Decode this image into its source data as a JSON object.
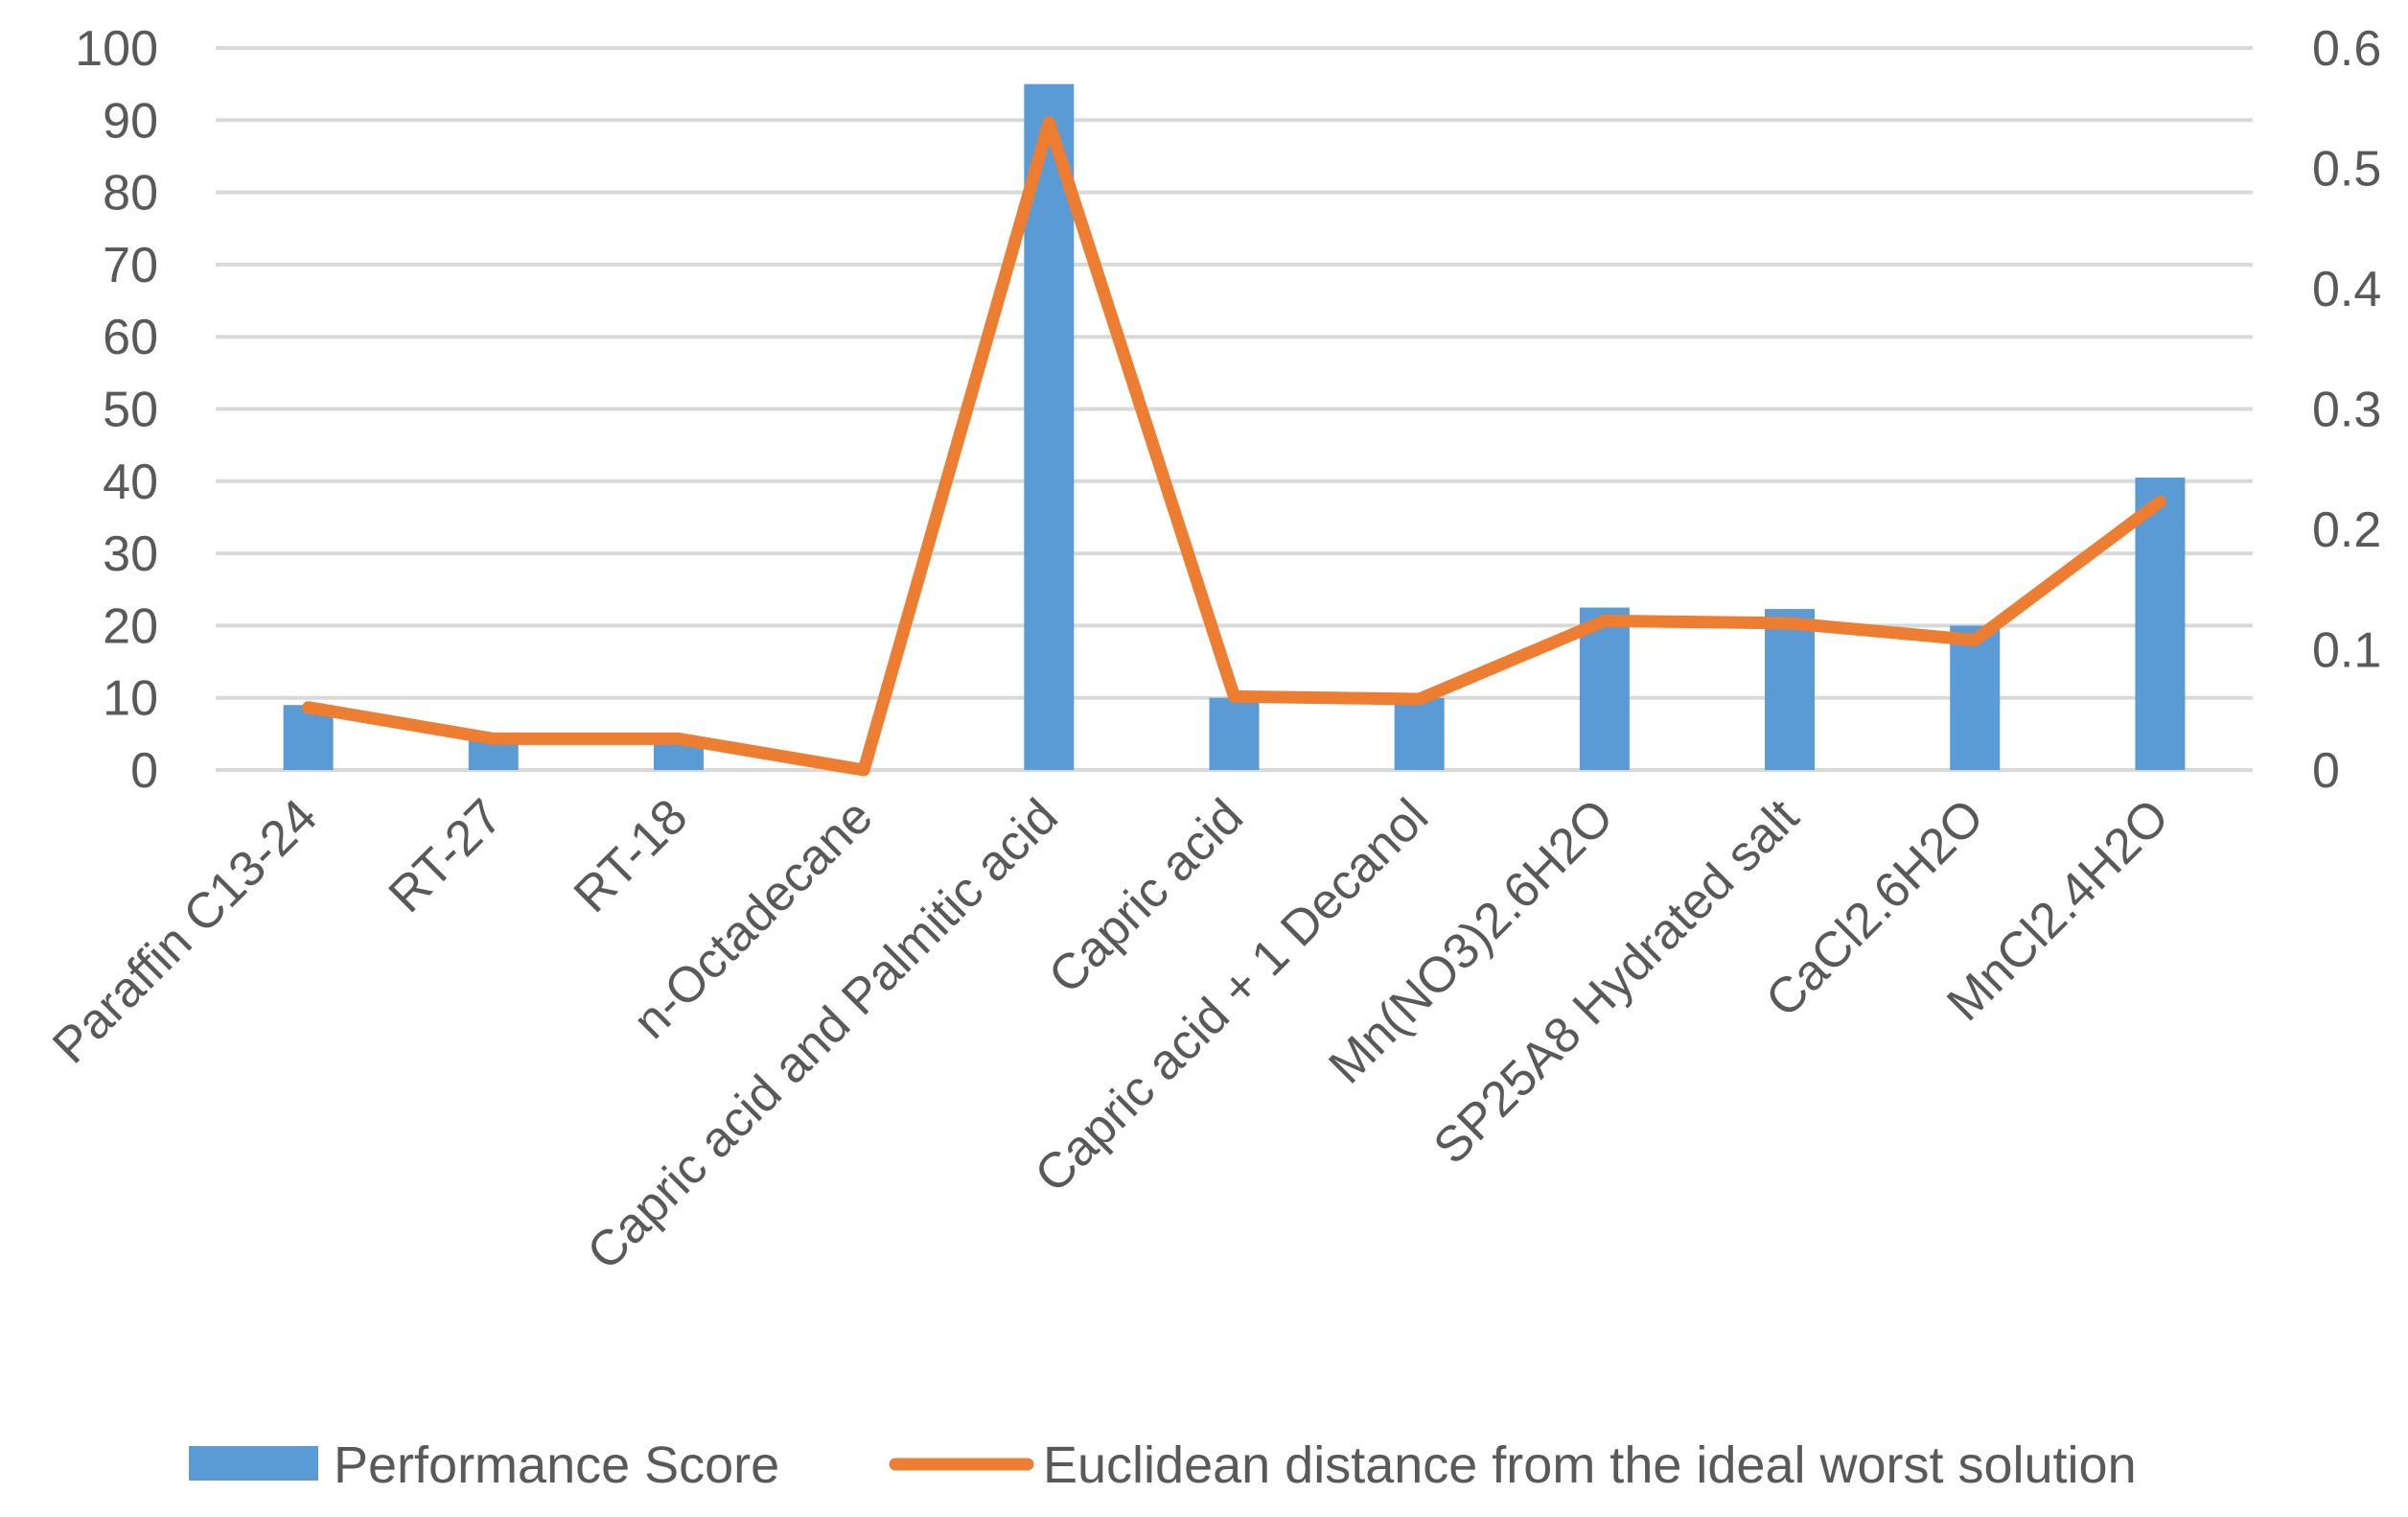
{
  "chart_data": {
    "type": "bar",
    "categories": [
      "Paraffin C13-24",
      "RT-27",
      "RT-18",
      "n-Octadecane",
      "Capric acid and Palmitic acid",
      "Capric acid",
      "Capric acid + 1 Decanol",
      "Mn(NO3)2.6H2O",
      "SP25A8 Hydrated salt",
      "CaCl2.6H2O",
      "MnCl2.4H2O"
    ],
    "series": [
      {
        "name": "Performance Score",
        "type": "bar",
        "axis": "left",
        "color": "#5b9bd5",
        "values": [
          9,
          4.5,
          4.5,
          0,
          95,
          10,
          10,
          22.5,
          22.3,
          20,
          40.5
        ]
      },
      {
        "name": "Euclidean distance from the ideal worst solution",
        "type": "line",
        "axis": "right",
        "color": "#ed7d31",
        "values": [
          0.052,
          0.026,
          0.026,
          0.0,
          0.538,
          0.061,
          0.059,
          0.124,
          0.122,
          0.108,
          0.223
        ]
      }
    ],
    "y_left": {
      "ylim": [
        0,
        100
      ],
      "ticks": [
        "0",
        "10",
        "20",
        "30",
        "40",
        "50",
        "60",
        "70",
        "80",
        "90",
        "100"
      ]
    },
    "y_right": {
      "ylim": [
        0,
        0.6
      ],
      "ticks": [
        "0",
        "0.1",
        "0.2",
        "0.3",
        "0.4",
        "0.5",
        "0.6"
      ]
    },
    "grid": true,
    "legend_position": "bottom"
  }
}
